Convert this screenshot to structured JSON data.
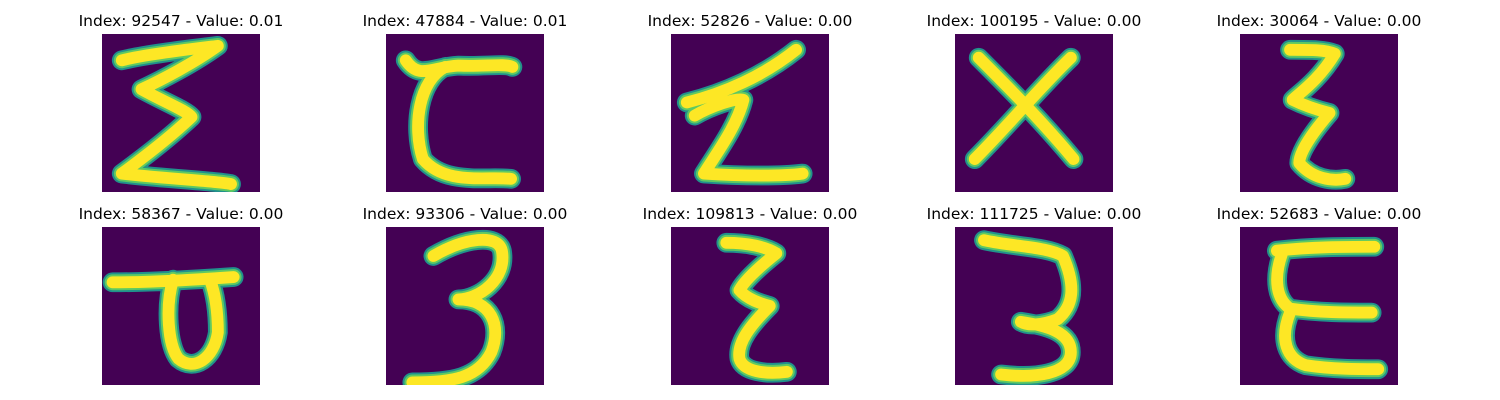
{
  "colors": {
    "background": "#440154",
    "stroke_low": "#21918c",
    "stroke_mid": "#5ec962",
    "stroke_high": "#fde725"
  },
  "images": [
    {
      "title": "Index: 92547 - Value: 0.01",
      "glyph": "sigma"
    },
    {
      "title": "Index: 47884 - Value: 0.01",
      "glyph": "curly-c"
    },
    {
      "title": "Index: 52826 - Value: 0.00",
      "glyph": "z-sigma"
    },
    {
      "title": "Index: 100195 - Value: 0.00",
      "glyph": "x"
    },
    {
      "title": "Index: 30064 - Value: 0.00",
      "glyph": "epsilon-narrow"
    },
    {
      "title": "Index: 58367 - Value: 0.00",
      "glyph": "p"
    },
    {
      "title": "Index: 93306 - Value: 0.00",
      "glyph": "three"
    },
    {
      "title": "Index: 109813 - Value: 0.00",
      "glyph": "epsilon"
    },
    {
      "title": "Index: 111725 - Value: 0.00",
      "glyph": "three-flat"
    },
    {
      "title": "Index: 52683 - Value: 0.00",
      "glyph": "epsilon-wide"
    }
  ]
}
